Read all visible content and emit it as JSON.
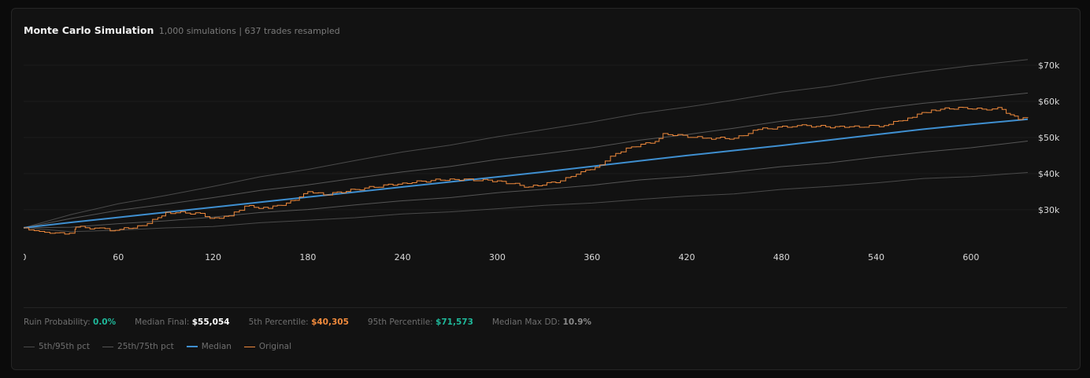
{
  "header": {
    "title": "Monte Carlo Simulation",
    "subtitle": "1,000 simulations | 637 trades resampled"
  },
  "stats": [
    {
      "label": "Ruin Probability:",
      "value": "0.0%",
      "color": "#1fb89a"
    },
    {
      "label": "Median Final:",
      "value": "$55,054",
      "color": "#ffffff"
    },
    {
      "label": "5th Percentile:",
      "value": "$40,305",
      "color": "#f08a3c"
    },
    {
      "label": "95th Percentile:",
      "value": "$71,573",
      "color": "#1fb89a"
    },
    {
      "label": "Median Max DD:",
      "value": "10.9%",
      "color": "#8a8a8a"
    }
  ],
  "legend": [
    {
      "label": "5th/95th pct",
      "color": "#4a4a4a"
    },
    {
      "label": "25th/75th pct",
      "color": "#555555"
    },
    {
      "label": "Median",
      "color": "#3f8fd0"
    },
    {
      "label": "Original",
      "color": "#f08a3c"
    }
  ],
  "chart_data": {
    "type": "line",
    "xlim": [
      0,
      636
    ],
    "ylim": [
      22800,
      75000
    ],
    "x_ticks": [
      "0",
      "60",
      "120",
      "180",
      "240",
      "300",
      "360",
      "420",
      "480",
      "540",
      "600"
    ],
    "x_tick_values": [
      0,
      60,
      120,
      180,
      240,
      300,
      360,
      420,
      480,
      540,
      600
    ],
    "y_ticks": [
      "$30k",
      "$40k",
      "$50k",
      "$60k",
      "$70k"
    ],
    "y_tick_values": [
      30000,
      40000,
      50000,
      60000,
      70000
    ],
    "grid": true,
    "legend_position": "bottom-left",
    "x": [
      0,
      30,
      60,
      90,
      120,
      150,
      180,
      210,
      240,
      270,
      300,
      330,
      360,
      390,
      420,
      450,
      480,
      510,
      540,
      570,
      600,
      636
    ],
    "series": [
      {
        "name": "5th/95th pct",
        "key": "p5",
        "color": "#4a4a4a",
        "values": [
          25000,
          24100,
          24300,
          24900,
          25500,
          26300,
          27100,
          27900,
          28700,
          29500,
          30300,
          31100,
          32000,
          32800,
          33700,
          34500,
          35500,
          36500,
          37500,
          38500,
          39300,
          40305
        ]
      },
      {
        "name": "5th/95th pct",
        "key": "p95",
        "color": "#4a4a4a",
        "values": [
          25000,
          28800,
          31500,
          34000,
          36500,
          39000,
          41300,
          43600,
          45900,
          48000,
          50100,
          52200,
          54400,
          56500,
          58500,
          60400,
          62400,
          64300,
          66300,
          68200,
          70000,
          71573
        ]
      },
      {
        "name": "25th/75th pct",
        "key": "p25",
        "color": "#555555",
        "values": [
          25000,
          25300,
          26000,
          27000,
          28000,
          29100,
          30200,
          31300,
          32400,
          33500,
          34600,
          35700,
          36900,
          38100,
          39300,
          40500,
          41800,
          43100,
          44500,
          45900,
          47300,
          49000
        ]
      },
      {
        "name": "25th/75th pct",
        "key": "p75",
        "color": "#555555",
        "values": [
          25000,
          27700,
          29700,
          31600,
          33400,
          35200,
          37000,
          38700,
          40400,
          42100,
          43800,
          45500,
          47300,
          49100,
          50900,
          52600,
          54400,
          56100,
          57800,
          59400,
          60800,
          62300
        ]
      },
      {
        "name": "Median",
        "key": "median",
        "color": "#3f8fd0",
        "values": [
          25000,
          26500,
          27900,
          29300,
          30700,
          32100,
          33500,
          34900,
          36300,
          37700,
          39100,
          40500,
          42000,
          43500,
          45000,
          46400,
          47800,
          49300,
          50800,
          52300,
          53600,
          55054
        ]
      }
    ],
    "original": {
      "name": "Original",
      "color": "#f08a3c",
      "points": [
        [
          0,
          25000
        ],
        [
          10,
          24000
        ],
        [
          20,
          23600
        ],
        [
          32,
          23500
        ],
        [
          33,
          25200
        ],
        [
          45,
          24900
        ],
        [
          58,
          24300
        ],
        [
          75,
          25600
        ],
        [
          85,
          27800
        ],
        [
          90,
          29300
        ],
        [
          112,
          29000
        ],
        [
          118,
          27600
        ],
        [
          130,
          28300
        ],
        [
          140,
          31000
        ],
        [
          155,
          30400
        ],
        [
          172,
          32600
        ],
        [
          180,
          35000
        ],
        [
          190,
          34100
        ],
        [
          210,
          35600
        ],
        [
          240,
          37400
        ],
        [
          270,
          38500
        ],
        [
          300,
          38000
        ],
        [
          320,
          36300
        ],
        [
          340,
          38000
        ],
        [
          350,
          39800
        ],
        [
          365,
          42400
        ],
        [
          375,
          45600
        ],
        [
          385,
          47400
        ],
        [
          400,
          48900
        ],
        [
          405,
          51100
        ],
        [
          430,
          49800
        ],
        [
          450,
          49800
        ],
        [
          465,
          52200
        ],
        [
          490,
          53300
        ],
        [
          520,
          52800
        ],
        [
          545,
          53300
        ],
        [
          560,
          55400
        ],
        [
          575,
          57600
        ],
        [
          595,
          58300
        ],
        [
          610,
          57600
        ],
        [
          617,
          58300
        ],
        [
          625,
          56300
        ],
        [
          630,
          55000
        ],
        [
          636,
          55400
        ]
      ]
    }
  }
}
